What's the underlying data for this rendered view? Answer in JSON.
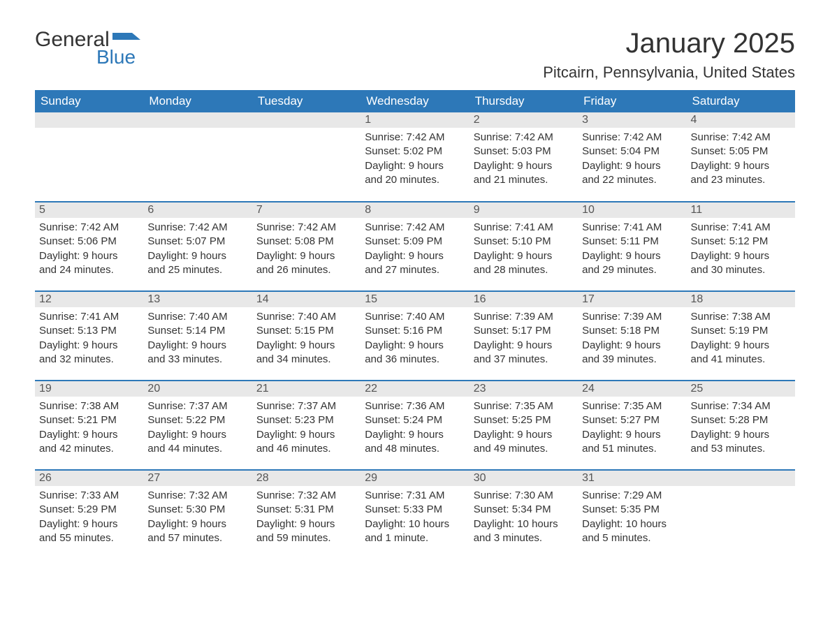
{
  "logo": {
    "text_general": "General",
    "text_blue": "Blue",
    "flag_color": "#2d78b8"
  },
  "header": {
    "month_title": "January 2025",
    "location": "Pitcairn, Pennsylvania, United States"
  },
  "colors": {
    "header_bg": "#2d78b8",
    "header_text": "#ffffff",
    "daynum_bg": "#e8e8e8",
    "text": "#333333",
    "border": "#2d78b8",
    "background": "#ffffff"
  },
  "fonts": {
    "month_title_size_pt": 30,
    "location_size_pt": 17,
    "header_size_pt": 13,
    "body_size_pt": 11
  },
  "days_of_week": [
    "Sunday",
    "Monday",
    "Tuesday",
    "Wednesday",
    "Thursday",
    "Friday",
    "Saturday"
  ],
  "weeks": [
    [
      null,
      null,
      null,
      {
        "n": "1",
        "sunrise": "Sunrise: 7:42 AM",
        "sunset": "Sunset: 5:02 PM",
        "dl1": "Daylight: 9 hours",
        "dl2": "and 20 minutes."
      },
      {
        "n": "2",
        "sunrise": "Sunrise: 7:42 AM",
        "sunset": "Sunset: 5:03 PM",
        "dl1": "Daylight: 9 hours",
        "dl2": "and 21 minutes."
      },
      {
        "n": "3",
        "sunrise": "Sunrise: 7:42 AM",
        "sunset": "Sunset: 5:04 PM",
        "dl1": "Daylight: 9 hours",
        "dl2": "and 22 minutes."
      },
      {
        "n": "4",
        "sunrise": "Sunrise: 7:42 AM",
        "sunset": "Sunset: 5:05 PM",
        "dl1": "Daylight: 9 hours",
        "dl2": "and 23 minutes."
      }
    ],
    [
      {
        "n": "5",
        "sunrise": "Sunrise: 7:42 AM",
        "sunset": "Sunset: 5:06 PM",
        "dl1": "Daylight: 9 hours",
        "dl2": "and 24 minutes."
      },
      {
        "n": "6",
        "sunrise": "Sunrise: 7:42 AM",
        "sunset": "Sunset: 5:07 PM",
        "dl1": "Daylight: 9 hours",
        "dl2": "and 25 minutes."
      },
      {
        "n": "7",
        "sunrise": "Sunrise: 7:42 AM",
        "sunset": "Sunset: 5:08 PM",
        "dl1": "Daylight: 9 hours",
        "dl2": "and 26 minutes."
      },
      {
        "n": "8",
        "sunrise": "Sunrise: 7:42 AM",
        "sunset": "Sunset: 5:09 PM",
        "dl1": "Daylight: 9 hours",
        "dl2": "and 27 minutes."
      },
      {
        "n": "9",
        "sunrise": "Sunrise: 7:41 AM",
        "sunset": "Sunset: 5:10 PM",
        "dl1": "Daylight: 9 hours",
        "dl2": "and 28 minutes."
      },
      {
        "n": "10",
        "sunrise": "Sunrise: 7:41 AM",
        "sunset": "Sunset: 5:11 PM",
        "dl1": "Daylight: 9 hours",
        "dl2": "and 29 minutes."
      },
      {
        "n": "11",
        "sunrise": "Sunrise: 7:41 AM",
        "sunset": "Sunset: 5:12 PM",
        "dl1": "Daylight: 9 hours",
        "dl2": "and 30 minutes."
      }
    ],
    [
      {
        "n": "12",
        "sunrise": "Sunrise: 7:41 AM",
        "sunset": "Sunset: 5:13 PM",
        "dl1": "Daylight: 9 hours",
        "dl2": "and 32 minutes."
      },
      {
        "n": "13",
        "sunrise": "Sunrise: 7:40 AM",
        "sunset": "Sunset: 5:14 PM",
        "dl1": "Daylight: 9 hours",
        "dl2": "and 33 minutes."
      },
      {
        "n": "14",
        "sunrise": "Sunrise: 7:40 AM",
        "sunset": "Sunset: 5:15 PM",
        "dl1": "Daylight: 9 hours",
        "dl2": "and 34 minutes."
      },
      {
        "n": "15",
        "sunrise": "Sunrise: 7:40 AM",
        "sunset": "Sunset: 5:16 PM",
        "dl1": "Daylight: 9 hours",
        "dl2": "and 36 minutes."
      },
      {
        "n": "16",
        "sunrise": "Sunrise: 7:39 AM",
        "sunset": "Sunset: 5:17 PM",
        "dl1": "Daylight: 9 hours",
        "dl2": "and 37 minutes."
      },
      {
        "n": "17",
        "sunrise": "Sunrise: 7:39 AM",
        "sunset": "Sunset: 5:18 PM",
        "dl1": "Daylight: 9 hours",
        "dl2": "and 39 minutes."
      },
      {
        "n": "18",
        "sunrise": "Sunrise: 7:38 AM",
        "sunset": "Sunset: 5:19 PM",
        "dl1": "Daylight: 9 hours",
        "dl2": "and 41 minutes."
      }
    ],
    [
      {
        "n": "19",
        "sunrise": "Sunrise: 7:38 AM",
        "sunset": "Sunset: 5:21 PM",
        "dl1": "Daylight: 9 hours",
        "dl2": "and 42 minutes."
      },
      {
        "n": "20",
        "sunrise": "Sunrise: 7:37 AM",
        "sunset": "Sunset: 5:22 PM",
        "dl1": "Daylight: 9 hours",
        "dl2": "and 44 minutes."
      },
      {
        "n": "21",
        "sunrise": "Sunrise: 7:37 AM",
        "sunset": "Sunset: 5:23 PM",
        "dl1": "Daylight: 9 hours",
        "dl2": "and 46 minutes."
      },
      {
        "n": "22",
        "sunrise": "Sunrise: 7:36 AM",
        "sunset": "Sunset: 5:24 PM",
        "dl1": "Daylight: 9 hours",
        "dl2": "and 48 minutes."
      },
      {
        "n": "23",
        "sunrise": "Sunrise: 7:35 AM",
        "sunset": "Sunset: 5:25 PM",
        "dl1": "Daylight: 9 hours",
        "dl2": "and 49 minutes."
      },
      {
        "n": "24",
        "sunrise": "Sunrise: 7:35 AM",
        "sunset": "Sunset: 5:27 PM",
        "dl1": "Daylight: 9 hours",
        "dl2": "and 51 minutes."
      },
      {
        "n": "25",
        "sunrise": "Sunrise: 7:34 AM",
        "sunset": "Sunset: 5:28 PM",
        "dl1": "Daylight: 9 hours",
        "dl2": "and 53 minutes."
      }
    ],
    [
      {
        "n": "26",
        "sunrise": "Sunrise: 7:33 AM",
        "sunset": "Sunset: 5:29 PM",
        "dl1": "Daylight: 9 hours",
        "dl2": "and 55 minutes."
      },
      {
        "n": "27",
        "sunrise": "Sunrise: 7:32 AM",
        "sunset": "Sunset: 5:30 PM",
        "dl1": "Daylight: 9 hours",
        "dl2": "and 57 minutes."
      },
      {
        "n": "28",
        "sunrise": "Sunrise: 7:32 AM",
        "sunset": "Sunset: 5:31 PM",
        "dl1": "Daylight: 9 hours",
        "dl2": "and 59 minutes."
      },
      {
        "n": "29",
        "sunrise": "Sunrise: 7:31 AM",
        "sunset": "Sunset: 5:33 PM",
        "dl1": "Daylight: 10 hours",
        "dl2": "and 1 minute."
      },
      {
        "n": "30",
        "sunrise": "Sunrise: 7:30 AM",
        "sunset": "Sunset: 5:34 PM",
        "dl1": "Daylight: 10 hours",
        "dl2": "and 3 minutes."
      },
      {
        "n": "31",
        "sunrise": "Sunrise: 7:29 AM",
        "sunset": "Sunset: 5:35 PM",
        "dl1": "Daylight: 10 hours",
        "dl2": "and 5 minutes."
      },
      null
    ]
  ]
}
